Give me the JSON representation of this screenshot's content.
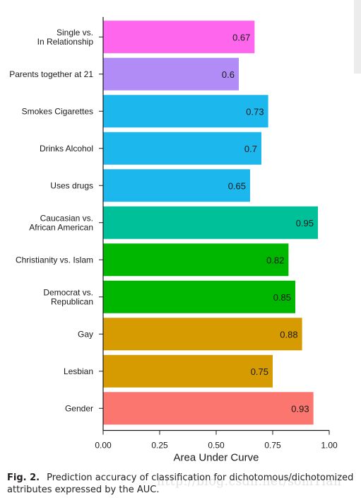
{
  "chart_data": {
    "type": "bar",
    "orientation": "horizontal",
    "categories": [
      "Single vs.\nIn Relationship",
      "Parents together at 21",
      "Smokes Cigarettes",
      "Drinks Alcohol",
      "Uses drugs",
      "Caucasian vs.\nAfrican American",
      "Christianity vs. Islam",
      "Democrat vs.\nRepublican",
      "Gay",
      "Lesbian",
      "Gender"
    ],
    "values": [
      0.67,
      0.6,
      0.73,
      0.7,
      0.65,
      0.95,
      0.82,
      0.85,
      0.88,
      0.75,
      0.93
    ],
    "data_labels": [
      "0.67",
      "0.6",
      "0.73",
      "0.7",
      "0.65",
      "0.95",
      "0.82",
      "0.85",
      "0.88",
      "0.75",
      "0.93"
    ],
    "colors": [
      "#ff66ee",
      "#b28cf6",
      "#1cb7ed",
      "#1cb7ed",
      "#1cb7ed",
      "#00c09a",
      "#00b700",
      "#00b700",
      "#d69b00",
      "#d69b00",
      "#fa766e"
    ],
    "xlabel": "Area Under Curve",
    "ylabel": "",
    "xlim": [
      0,
      1
    ],
    "xticks": [
      "0.00",
      "0.25",
      "0.50",
      "0.75",
      "1.00"
    ],
    "grid": false,
    "legend": "none"
  },
  "caption": {
    "label": "Fig. 2.",
    "text": "Prediction accuracy of classification for dichotomous/dichotomized attributes expressed by the AUC."
  },
  "watermark": "http://blog.csdn.net/somTian"
}
